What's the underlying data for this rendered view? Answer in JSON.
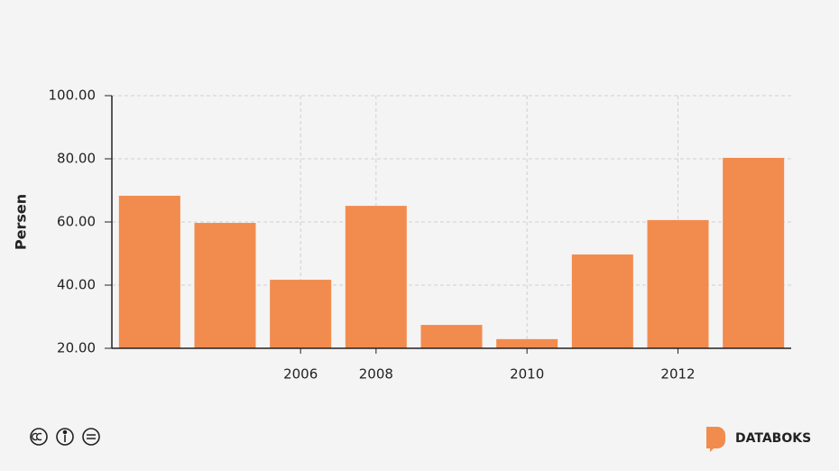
{
  "chart_data": {
    "type": "bar",
    "y_label": "Persen",
    "categories": [
      null,
      null,
      "2006",
      "2008",
      null,
      "2010",
      null,
      "2012",
      null
    ],
    "values": [
      68.3,
      59.7,
      41.7,
      65.1,
      27.4,
      22.9,
      49.7,
      60.6,
      80.3
    ],
    "color": "#f28b4e",
    "ylim": [
      20,
      100
    ],
    "yticks": [
      {
        "value": 20,
        "label": "20.00"
      },
      {
        "value": 40,
        "label": "40.00"
      },
      {
        "value": 60,
        "label": "60.00"
      },
      {
        "value": 80,
        "label": "80.00"
      },
      {
        "value": 100,
        "label": "100.00"
      }
    ],
    "grid": true
  },
  "footer": {
    "brand": "DATABOKS"
  }
}
